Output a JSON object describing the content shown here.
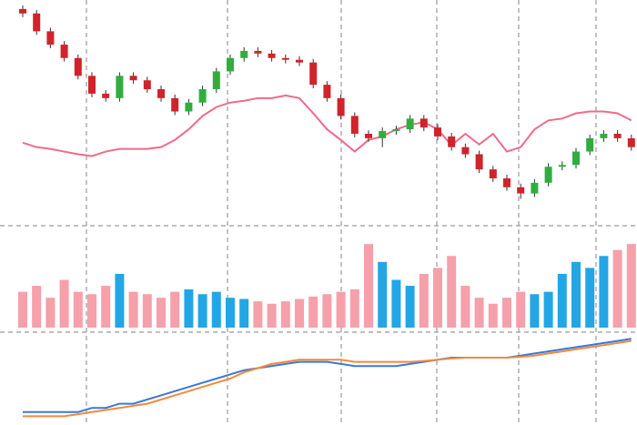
{
  "chart_data": {
    "type": "candlestick",
    "open": [
      235,
      230,
      210,
      195,
      180,
      160,
      140,
      135,
      160,
      155,
      145,
      135,
      120,
      130,
      145,
      165,
      180,
      188,
      185,
      180,
      178,
      175,
      150,
      135,
      115,
      95,
      90,
      98,
      100,
      112,
      102,
      92,
      80,
      72,
      55,
      45,
      35,
      28,
      40,
      58,
      60,
      75,
      90,
      95,
      90
    ],
    "high": [
      239,
      234,
      214,
      199,
      184,
      164,
      144,
      164,
      164,
      159,
      149,
      139,
      134,
      149,
      169,
      184,
      192,
      192,
      189,
      184,
      182,
      179,
      154,
      139,
      119,
      99,
      102,
      104,
      116,
      116,
      106,
      96,
      84,
      76,
      59,
      49,
      39,
      44,
      62,
      64,
      79,
      94,
      99,
      99,
      94
    ],
    "low": [
      226,
      206,
      191,
      176,
      156,
      136,
      131,
      131,
      151,
      141,
      131,
      116,
      116,
      126,
      141,
      161,
      176,
      181,
      176,
      174,
      171,
      146,
      131,
      111,
      91,
      86,
      80,
      94,
      96,
      98,
      88,
      76,
      68,
      51,
      41,
      31,
      22,
      24,
      36,
      54,
      56,
      71,
      86,
      86,
      76
    ],
    "close": [
      230,
      210,
      195,
      180,
      160,
      140,
      135,
      160,
      155,
      145,
      135,
      120,
      130,
      145,
      165,
      180,
      188,
      185,
      180,
      178,
      175,
      150,
      135,
      115,
      95,
      90,
      98,
      100,
      112,
      102,
      92,
      80,
      72,
      55,
      45,
      35,
      28,
      40,
      58,
      60,
      75,
      90,
      95,
      90,
      80
    ],
    "ylim": [
      0,
      240
    ],
    "up_color": "#2fae3f",
    "down_color": "#d0232a",
    "moving_average": {
      "color": "#f06a8a",
      "values": [
        85,
        80,
        78,
        75,
        72,
        70,
        75,
        78,
        78,
        78,
        80,
        88,
        100,
        115,
        125,
        130,
        132,
        135,
        135,
        138,
        135,
        118,
        100,
        88,
        75,
        88,
        92,
        100,
        105,
        108,
        100,
        82,
        95,
        83,
        95,
        75,
        80,
        100,
        110,
        112,
        118,
        120,
        120,
        118,
        110
      ]
    },
    "volume": {
      "ylim": [
        0,
        80
      ],
      "up_color": "#22a6e6",
      "down_color": "#f5a0aa",
      "values": [
        30,
        35,
        25,
        40,
        30,
        28,
        35,
        45,
        30,
        28,
        25,
        30,
        32,
        28,
        30,
        25,
        24,
        22,
        20,
        22,
        24,
        26,
        28,
        30,
        32,
        70,
        55,
        40,
        35,
        45,
        50,
        60,
        35,
        25,
        20,
        25,
        30,
        28,
        30,
        45,
        55,
        50,
        60,
        65,
        70
      ]
    },
    "indicator": {
      "ylim": [
        -10,
        10
      ],
      "series": [
        {
          "color": "#3b78d8",
          "values": [
            -8,
            -8,
            -8,
            -8,
            -8,
            -7,
            -7,
            -6,
            -6,
            -5,
            -4,
            -3,
            -2,
            -1,
            0,
            1,
            2,
            2.5,
            3,
            3.5,
            4,
            4,
            4,
            3.5,
            3,
            3,
            3,
            3,
            3.5,
            4,
            4.5,
            5,
            5,
            5,
            5,
            5,
            5.5,
            6,
            6.5,
            7,
            7.5,
            8,
            8.5,
            9,
            9.5
          ]
        },
        {
          "color": "#f28a3c",
          "values": [
            -9,
            -9,
            -9,
            -9,
            -8.5,
            -8,
            -7.5,
            -7,
            -6.5,
            -6,
            -5,
            -4,
            -3,
            -2,
            -1,
            0,
            1.5,
            2.5,
            3.5,
            4,
            4.5,
            4.5,
            4.5,
            4.5,
            4,
            4,
            4,
            4,
            4,
            4.2,
            4.5,
            4.8,
            5,
            5,
            5,
            5,
            5.2,
            5.5,
            6,
            6.5,
            7,
            7.5,
            8,
            8.5,
            9
          ]
        }
      ]
    }
  }
}
